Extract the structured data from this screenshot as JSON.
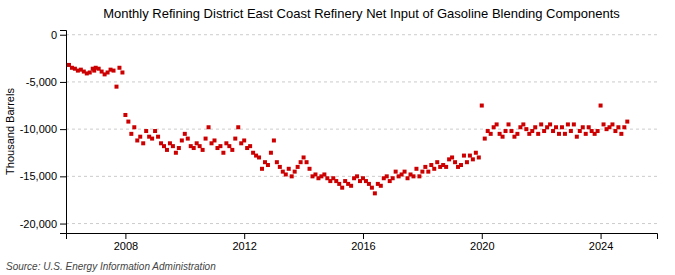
{
  "chart_data": {
    "type": "scatter",
    "title": "Monthly Refining District East Coast Refinery Net Input of Gasoline Blending Components",
    "ylabel": "Thousand Barrels",
    "source": "Source: U.S. Energy Information Administration",
    "color": "#cc0000",
    "marker": "square",
    "grid": true,
    "xlim": [
      2006.0,
      2025.9
    ],
    "xticks": [
      2008,
      2012,
      2016,
      2020,
      2024
    ],
    "ylim": [
      -21000,
      500
    ],
    "yticks": [
      0,
      {
        "value": -5000,
        "label": "-5,000"
      },
      {
        "value": -10000,
        "label": "-10,000"
      },
      {
        "value": -15000,
        "label": "-15,000"
      },
      {
        "value": -20000,
        "label": "-20,000"
      }
    ],
    "x": [
      2006.1,
      2006.2,
      2006.3,
      2006.4,
      2006.5,
      2006.6,
      2006.7,
      2006.8,
      2006.9,
      2006.95,
      2007.0,
      2007.1,
      2007.2,
      2007.3,
      2007.4,
      2007.5,
      2007.6,
      2007.7,
      2007.8,
      2007.9,
      2008.0,
      2008.1,
      2008.2,
      2008.3,
      2008.4,
      2008.5,
      2008.6,
      2008.7,
      2008.8,
      2008.9,
      2009.0,
      2009.1,
      2009.2,
      2009.3,
      2009.4,
      2009.5,
      2009.6,
      2009.7,
      2009.8,
      2009.9,
      2010.0,
      2010.1,
      2010.2,
      2010.3,
      2010.4,
      2010.5,
      2010.6,
      2010.7,
      2010.8,
      2010.9,
      2011.0,
      2011.1,
      2011.2,
      2011.3,
      2011.4,
      2011.5,
      2011.6,
      2011.7,
      2011.8,
      2011.9,
      2012.0,
      2012.1,
      2012.2,
      2012.3,
      2012.4,
      2012.5,
      2012.6,
      2012.7,
      2012.8,
      2012.9,
      2013.0,
      2013.1,
      2013.2,
      2013.3,
      2013.4,
      2013.5,
      2013.6,
      2013.7,
      2013.8,
      2013.9,
      2014.0,
      2014.1,
      2014.2,
      2014.3,
      2014.4,
      2014.5,
      2014.6,
      2014.7,
      2014.8,
      2014.9,
      2015.0,
      2015.1,
      2015.2,
      2015.3,
      2015.4,
      2015.5,
      2015.6,
      2015.7,
      2015.8,
      2015.9,
      2016.0,
      2016.1,
      2016.2,
      2016.3,
      2016.4,
      2016.5,
      2016.6,
      2016.7,
      2016.8,
      2016.9,
      2017.0,
      2017.1,
      2017.2,
      2017.3,
      2017.4,
      2017.5,
      2017.6,
      2017.7,
      2017.8,
      2017.9,
      2018.0,
      2018.1,
      2018.2,
      2018.3,
      2018.4,
      2018.5,
      2018.6,
      2018.7,
      2018.8,
      2018.9,
      2019.0,
      2019.1,
      2019.2,
      2019.3,
      2019.4,
      2019.5,
      2019.6,
      2019.7,
      2019.8,
      2019.9,
      2020.0,
      2020.1,
      2020.2,
      2020.3,
      2020.4,
      2020.5,
      2020.6,
      2020.7,
      2020.8,
      2020.9,
      2021.0,
      2021.1,
      2021.2,
      2021.3,
      2021.4,
      2021.5,
      2021.6,
      2021.7,
      2021.8,
      2021.9,
      2022.0,
      2022.1,
      2022.2,
      2022.3,
      2022.4,
      2022.5,
      2022.6,
      2022.7,
      2022.8,
      2022.9,
      2023.0,
      2023.1,
      2023.2,
      2023.3,
      2023.4,
      2023.5,
      2023.6,
      2023.7,
      2023.8,
      2023.9,
      2024.0,
      2024.1,
      2024.2,
      2024.3,
      2024.4,
      2024.5,
      2024.6,
      2024.7,
      2024.8,
      2024.9
    ],
    "values": [
      -3200,
      -3500,
      -3600,
      -3800,
      -3700,
      -3900,
      -4100,
      -4000,
      -3600,
      -3800,
      -3500,
      -3600,
      -3900,
      -4200,
      -4000,
      -3700,
      -3800,
      -5500,
      -3500,
      -4000,
      -8500,
      -9200,
      -10500,
      -9800,
      -11200,
      -10800,
      -11500,
      -10200,
      -10800,
      -11000,
      -10200,
      -10800,
      -11500,
      -11800,
      -12200,
      -11500,
      -11800,
      -12500,
      -12000,
      -11200,
      -10500,
      -11000,
      -11800,
      -12000,
      -11500,
      -11800,
      -12200,
      -11000,
      -9800,
      -11500,
      -11200,
      -12000,
      -11800,
      -12500,
      -11500,
      -11800,
      -12200,
      -11000,
      -9800,
      -11500,
      -11200,
      -12000,
      -11800,
      -12500,
      -12800,
      -13000,
      -14200,
      -13500,
      -13800,
      -12500,
      -11200,
      -13500,
      -14000,
      -14500,
      -14800,
      -14200,
      -15000,
      -14500,
      -14000,
      -13500,
      -13000,
      -13500,
      -14200,
      -15000,
      -14800,
      -15200,
      -15000,
      -14800,
      -15200,
      -15500,
      -15200,
      -15500,
      -15800,
      -16200,
      -15500,
      -15800,
      -16000,
      -15200,
      -15000,
      -15500,
      -15200,
      -15500,
      -15800,
      -16200,
      -16800,
      -15800,
      -16000,
      -15200,
      -15000,
      -15500,
      -15200,
      -14500,
      -15000,
      -14800,
      -14500,
      -15200,
      -14800,
      -15000,
      -14200,
      -15000,
      -14500,
      -14000,
      -14500,
      -13800,
      -14200,
      -13500,
      -14000,
      -13800,
      -14000,
      -13200,
      -13000,
      -13500,
      -14000,
      -13800,
      -12800,
      -13500,
      -12800,
      -13200,
      -12500,
      -13000,
      -7500,
      -11000,
      -10200,
      -10500,
      -9800,
      -9500,
      -10500,
      -10800,
      -10200,
      -9500,
      -10200,
      -10800,
      -10500,
      -9800,
      -9500,
      -10000,
      -10500,
      -10200,
      -9800,
      -10500,
      -9500,
      -10200,
      -9800,
      -9500,
      -10200,
      -9800,
      -10500,
      -9800,
      -10500,
      -9500,
      -10200,
      -9500,
      -10800,
      -10200,
      -9800,
      -10500,
      -9800,
      -10200,
      -10500,
      -10200,
      -7500,
      -9500,
      -10000,
      -9800,
      -9500,
      -10200,
      -9800,
      -10500,
      -9800,
      -9200
    ]
  }
}
